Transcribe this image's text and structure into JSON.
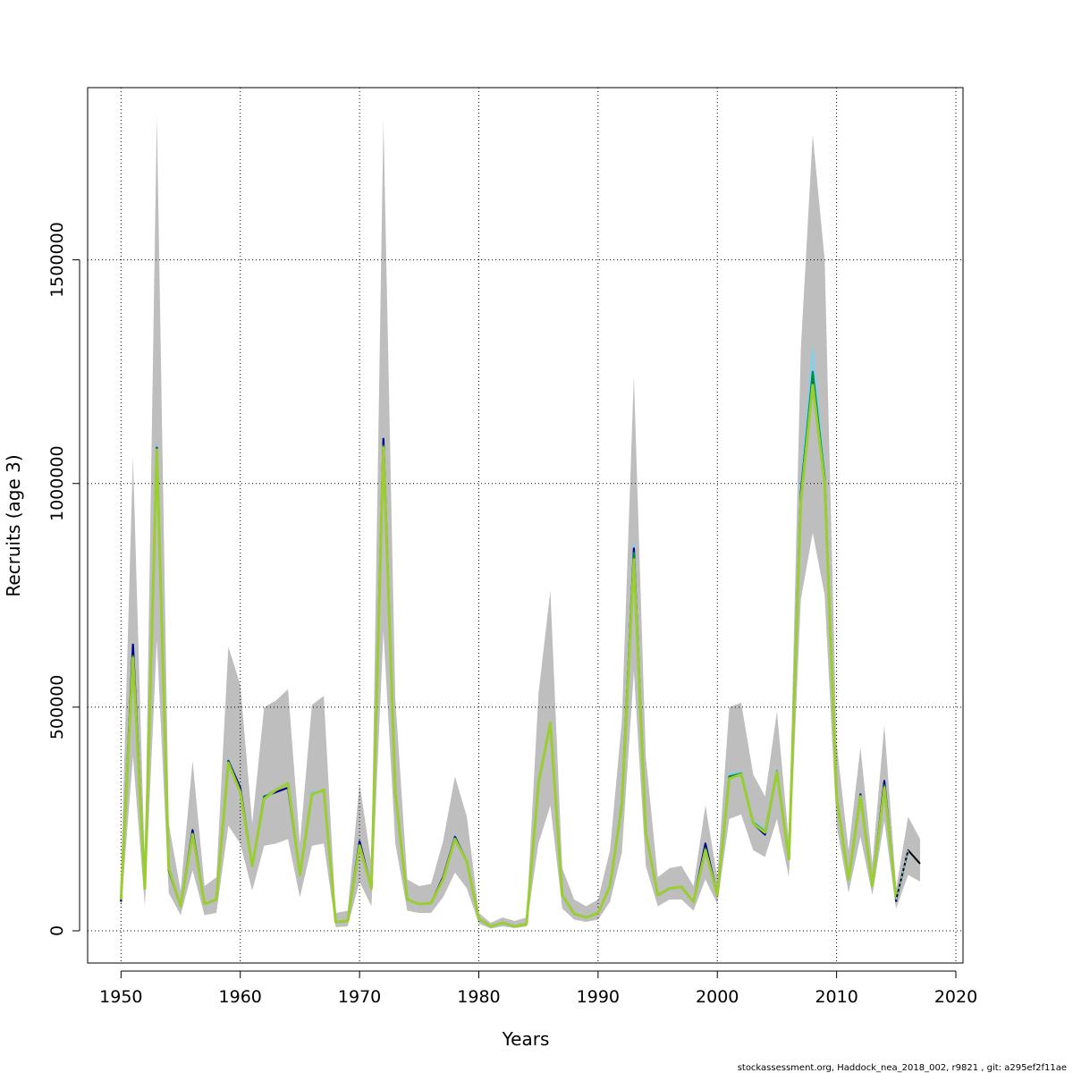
{
  "chart_data": {
    "type": "line",
    "title": "",
    "xlabel": "Years",
    "ylabel": "Recruits (age 3)",
    "footer": "stockassessment.org, Haddock_nea_2018_002, r9821 , git: a295ef2f11ae",
    "xlim": [
      1947.2,
      2020.6
    ],
    "ylim": [
      -72000,
      1885000
    ],
    "xticks": [
      1950,
      1960,
      1970,
      1980,
      1990,
      2000,
      2010,
      2020
    ],
    "yticks": [
      0,
      500000,
      1000000,
      1500000
    ],
    "ytick_labels": [
      "0",
      "500000",
      "1000000",
      "1500000"
    ],
    "grid": true,
    "colors": {
      "band": "#bebebe",
      "main": "#9acd32",
      "alt1": "#00008b",
      "alt2": "#87ceeb",
      "alt3": "#008b45",
      "forecast": "#000000"
    },
    "x": [
      1950,
      1951,
      1952,
      1953,
      1954,
      1955,
      1956,
      1957,
      1958,
      1959,
      1960,
      1961,
      1962,
      1963,
      1964,
      1965,
      1966,
      1967,
      1968,
      1969,
      1970,
      1971,
      1972,
      1973,
      1974,
      1975,
      1976,
      1977,
      1978,
      1979,
      1980,
      1981,
      1982,
      1983,
      1984,
      1985,
      1986,
      1987,
      1988,
      1989,
      1990,
      1991,
      1992,
      1993,
      1994,
      1995,
      1996,
      1997,
      1998,
      1999,
      2000,
      2001,
      2002,
      2003,
      2004,
      2005,
      2006,
      2007,
      2008,
      2009,
      2010,
      2011,
      2012,
      2013,
      2014,
      2015
    ],
    "band_upper": [
      120000,
      1060000,
      140000,
      1820000,
      240000,
      90000,
      380000,
      100000,
      120000,
      635000,
      550000,
      240000,
      500000,
      515000,
      540000,
      195000,
      505000,
      525000,
      40000,
      45000,
      330000,
      150000,
      1810000,
      520000,
      115000,
      100000,
      105000,
      200000,
      345000,
      255000,
      40000,
      18000,
      30000,
      22000,
      30000,
      530000,
      760000,
      140000,
      70000,
      55000,
      70000,
      180000,
      470000,
      1240000,
      390000,
      120000,
      140000,
      145000,
      100000,
      280000,
      120000,
      500000,
      510000,
      350000,
      300000,
      490000,
      200000,
      1300000,
      1780000,
      1500000,
      420000,
      180000,
      410000,
      150000,
      460000,
      95000
    ],
    "band_lower": [
      45000,
      390000,
      55000,
      650000,
      85000,
      35000,
      135000,
      35000,
      40000,
      235000,
      195000,
      90000,
      190000,
      195000,
      205000,
      75000,
      190000,
      195000,
      8000,
      10000,
      110000,
      55000,
      670000,
      195000,
      45000,
      40000,
      40000,
      75000,
      130000,
      95000,
      16000,
      5000,
      10000,
      6000,
      10000,
      195000,
      280000,
      50000,
      25000,
      20000,
      25000,
      65000,
      175000,
      580000,
      145000,
      55000,
      70000,
      70000,
      45000,
      115000,
      60000,
      250000,
      260000,
      180000,
      165000,
      250000,
      120000,
      740000,
      890000,
      750000,
      235000,
      85000,
      210000,
      80000,
      245000,
      45000
    ],
    "series": [
      {
        "name": "",
        "values": [
          70000,
          610000,
          95000,
          1075000,
          140000,
          55000,
          215000,
          60000,
          70000,
          375000,
          310000,
          145000,
          295000,
          315000,
          330000,
          125000,
          305000,
          315000,
          20000,
          22000,
          190000,
          95000,
          1080000,
          310000,
          70000,
          60000,
          62000,
          115000,
          205000,
          155000,
          27000,
          10000,
          18000,
          10000,
          15000,
          330000,
          465000,
          80000,
          38000,
          30000,
          40000,
          100000,
          280000,
          830000,
          220000,
          80000,
          95000,
          98000,
          65000,
          180000,
          80000,
          340000,
          350000,
          240000,
          220000,
          355000,
          160000,
          960000,
          1220000,
          1000000,
          300000,
          115000,
          300000,
          100000,
          320000,
          70000
        ]
      },
      {
        "name": "",
        "values": [
          65000,
          640000,
          95000,
          1080000,
          135000,
          55000,
          225000,
          60000,
          70000,
          380000,
          320000,
          145000,
          300000,
          310000,
          320000,
          125000,
          305000,
          315000,
          20000,
          22000,
          200000,
          95000,
          1100000,
          305000,
          70000,
          60000,
          62000,
          120000,
          210000,
          155000,
          27000,
          10000,
          18000,
          10000,
          15000,
          330000,
          465000,
          80000,
          38000,
          30000,
          40000,
          100000,
          285000,
          855000,
          220000,
          80000,
          95000,
          98000,
          65000,
          195000,
          80000,
          345000,
          350000,
          240000,
          215000,
          355000,
          160000,
          980000,
          1240000,
          1010000,
          300000,
          115000,
          305000,
          100000,
          335000,
          65000
        ]
      },
      {
        "name": "",
        "values": [
          70000,
          620000,
          95000,
          1085000,
          140000,
          55000,
          220000,
          60000,
          70000,
          380000,
          315000,
          145000,
          300000,
          315000,
          330000,
          125000,
          310000,
          315000,
          20000,
          22000,
          195000,
          95000,
          1090000,
          310000,
          70000,
          60000,
          62000,
          118000,
          210000,
          155000,
          27000,
          10000,
          18000,
          10000,
          15000,
          335000,
          465000,
          80000,
          38000,
          30000,
          40000,
          100000,
          290000,
          865000,
          220000,
          80000,
          95000,
          98000,
          65000,
          190000,
          80000,
          350000,
          355000,
          245000,
          225000,
          360000,
          160000,
          990000,
          1300000,
          1020000,
          300000,
          115000,
          305000,
          100000,
          330000,
          70000
        ]
      },
      {
        "name": "",
        "values": [
          70000,
          615000,
          95000,
          1078000,
          140000,
          55000,
          218000,
          60000,
          70000,
          378000,
          312000,
          145000,
          298000,
          315000,
          330000,
          125000,
          306000,
          315000,
          20000,
          22000,
          192000,
          95000,
          1085000,
          310000,
          70000,
          60000,
          62000,
          116000,
          207000,
          155000,
          27000,
          10000,
          18000,
          10000,
          15000,
          332000,
          465000,
          80000,
          38000,
          30000,
          40000,
          100000,
          284000,
          845000,
          220000,
          80000,
          95000,
          98000,
          65000,
          185000,
          80000,
          345000,
          352000,
          242000,
          222000,
          357000,
          160000,
          975000,
          1250000,
          1012000,
          300000,
          115000,
          302000,
          100000,
          325000,
          70000
        ]
      }
    ],
    "forecast": {
      "x": [
        2015,
        2016,
        2017
      ],
      "values": [
        70000,
        180000,
        150000
      ],
      "band_upper": [
        95000,
        255000,
        205000
      ],
      "band_lower": [
        50000,
        125000,
        110000
      ]
    }
  }
}
